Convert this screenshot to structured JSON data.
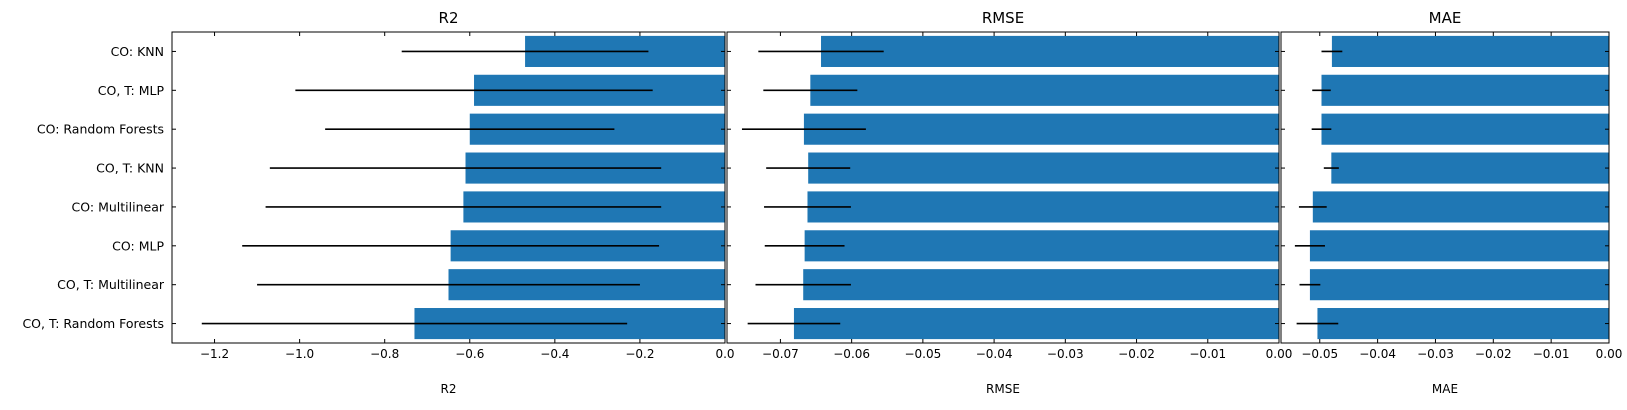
{
  "chart_data": {
    "type": "bar",
    "orientation": "horizontal",
    "categories": [
      "CO: KNN",
      "CO, T: MLP",
      "CO: Random Forests",
      "CO, T: KNN",
      "CO: Multilinear",
      "CO: MLP",
      "CO, T: Multilinear",
      "CO, T: Random Forests"
    ],
    "bar_color": "#1f77b4",
    "error_color": "#000000",
    "panels": [
      {
        "title": "R2",
        "xlabel": "R2",
        "xlim": [
          -1.3,
          0.0
        ],
        "ticks": [
          -1.2,
          -1.0,
          -0.8,
          -0.6,
          -0.4,
          -0.2,
          0.0
        ],
        "tick_labels": [
          "−1.2",
          "−1.0",
          "−0.8",
          "−0.6",
          "−0.4",
          "−0.2",
          "0.0"
        ],
        "values": [
          -0.47,
          -0.59,
          -0.6,
          -0.61,
          -0.615,
          -0.645,
          -0.65,
          -0.73
        ],
        "errors": [
          0.29,
          0.42,
          0.34,
          0.46,
          0.465,
          0.49,
          0.45,
          0.5
        ]
      },
      {
        "title": "RMSE",
        "xlabel": "RMSE",
        "xlim": [
          -0.0775,
          0.0
        ],
        "ticks": [
          -0.07,
          -0.06,
          -0.05,
          -0.04,
          -0.03,
          -0.02,
          -0.01,
          0.0
        ],
        "tick_labels": [
          "−0.07",
          "−0.06",
          "−0.05",
          "−0.04",
          "−0.03",
          "−0.02",
          "−0.01",
          "0.00"
        ],
        "values": [
          -0.0643,
          -0.0658,
          -0.0667,
          -0.0661,
          -0.0662,
          -0.0666,
          -0.0668,
          -0.0681
        ],
        "errors": [
          0.0088,
          0.0066,
          0.0087,
          0.0059,
          0.0061,
          0.0056,
          0.0067,
          0.0065
        ]
      },
      {
        "title": "MAE",
        "xlabel": "MAE",
        "xlim": [
          -0.0567,
          0.0
        ],
        "ticks": [
          -0.05,
          -0.04,
          -0.03,
          -0.02,
          -0.01,
          0.0
        ],
        "tick_labels": [
          "−0.05",
          "−0.04",
          "−0.03",
          "−0.02",
          "−0.01",
          "0.00"
        ],
        "values": [
          -0.0479,
          -0.0497,
          -0.0497,
          -0.048,
          -0.0512,
          -0.0517,
          -0.0517,
          -0.0504
        ],
        "errors": [
          0.0018,
          0.0016,
          0.0017,
          0.0013,
          0.0024,
          0.0026,
          0.0018,
          0.0036
        ]
      }
    ]
  }
}
